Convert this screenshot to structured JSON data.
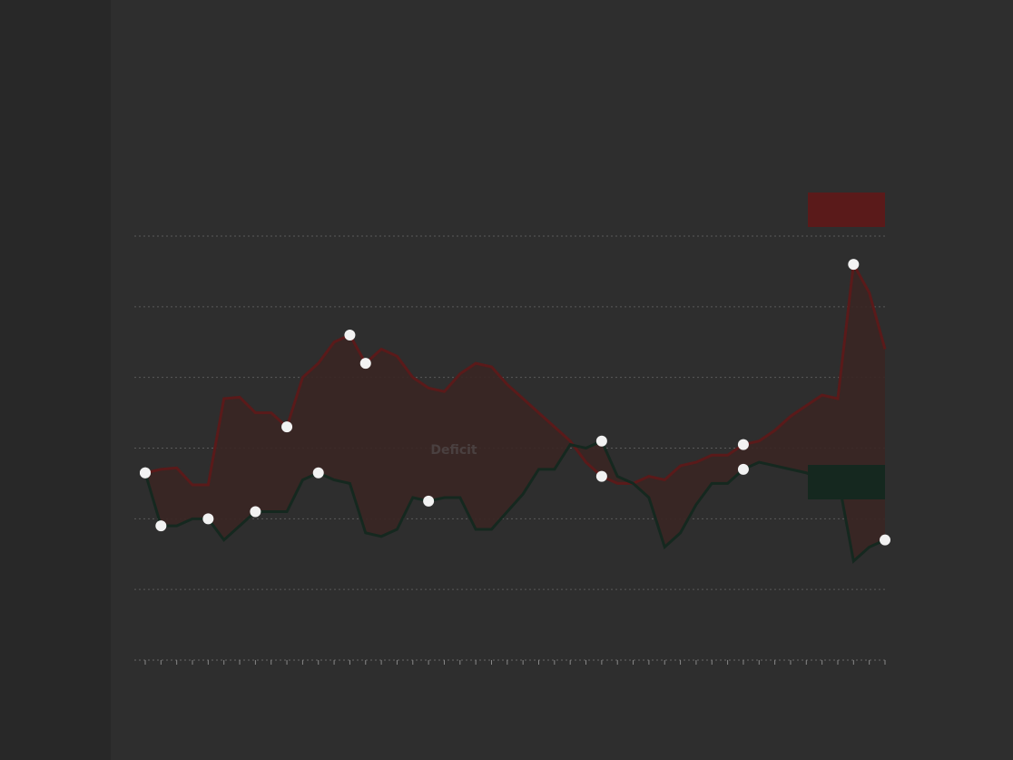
{
  "chart_data": {
    "type": "area",
    "title": "",
    "subtitle": "",
    "note": "",
    "x": [
      0,
      1,
      2,
      3,
      4,
      5,
      6,
      7,
      8,
      9,
      10,
      11,
      12,
      13,
      14,
      15,
      16,
      17,
      18,
      19,
      20,
      21,
      22,
      23,
      24,
      25,
      26,
      27,
      28,
      29,
      30,
      31,
      32,
      33,
      34,
      35,
      36,
      37,
      38,
      39,
      40,
      41,
      42,
      43,
      44,
      45,
      46,
      47
    ],
    "ylim": [
      0,
      6
    ],
    "yticks": [
      "",
      "",
      "",
      "",
      "",
      "",
      ""
    ],
    "xtick_positions": [
      0,
      5,
      10,
      15,
      20,
      25,
      30,
      35,
      40,
      45
    ],
    "xtick_labels": [
      "",
      "",
      "",
      "",
      "",
      "",
      "",
      "",
      "",
      ""
    ],
    "series": [
      {
        "name": "",
        "color": "#5a1a1a",
        "values": [
          2.65,
          2.7,
          2.72,
          2.48,
          2.48,
          3.7,
          3.72,
          3.5,
          3.5,
          3.3,
          4.0,
          4.2,
          4.5,
          4.6,
          4.2,
          4.4,
          4.3,
          4.0,
          3.85,
          3.8,
          4.05,
          4.2,
          4.15,
          3.9,
          3.7,
          3.5,
          3.3,
          3.1,
          2.8,
          2.6,
          2.5,
          2.5,
          2.6,
          2.55,
          2.75,
          2.8,
          2.9,
          2.9,
          3.05,
          3.1,
          3.25,
          3.45,
          3.6,
          3.75,
          3.7,
          5.6,
          5.2,
          4.4
        ]
      },
      {
        "name": "",
        "color": "#15281f",
        "values": [
          2.65,
          1.9,
          1.9,
          2.0,
          2.0,
          1.7,
          1.9,
          2.1,
          2.1,
          2.1,
          2.55,
          2.65,
          2.55,
          2.5,
          1.8,
          1.75,
          1.85,
          2.3,
          2.25,
          2.3,
          2.3,
          1.85,
          1.85,
          2.1,
          2.35,
          2.7,
          2.7,
          3.05,
          3.0,
          3.1,
          2.6,
          2.5,
          2.3,
          1.6,
          1.8,
          2.2,
          2.5,
          2.5,
          2.7,
          2.8,
          2.75,
          2.7,
          2.65,
          2.55,
          2.6,
          1.4,
          1.6,
          1.7
        ]
      }
    ],
    "fill_label": "Deficit",
    "annotations": [
      {
        "text": "",
        "x": 13,
        "y": 4.6
      },
      {
        "text": "",
        "x": 7,
        "y": 1.9
      },
      {
        "text": "",
        "x": 30,
        "y": 3.25
      }
    ],
    "end_labels": [
      {
        "text": "",
        "series": 0
      },
      {
        "text": "",
        "series": 1
      }
    ],
    "source_left": "",
    "source_mid": "",
    "source_right": "",
    "background": "#2e2e2e",
    "grid": true
  }
}
